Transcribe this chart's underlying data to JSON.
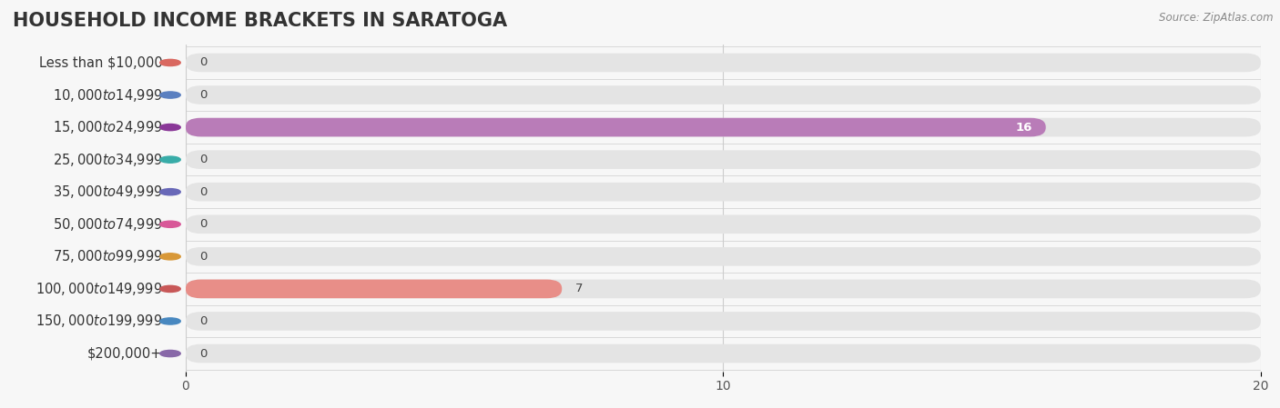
{
  "title": "HOUSEHOLD INCOME BRACKETS IN SARATOGA",
  "source": "Source: ZipAtlas.com",
  "categories": [
    "Less than $10,000",
    "$10,000 to $14,999",
    "$15,000 to $24,999",
    "$25,000 to $34,999",
    "$35,000 to $49,999",
    "$50,000 to $74,999",
    "$75,000 to $99,999",
    "$100,000 to $149,999",
    "$150,000 to $199,999",
    "$200,000+"
  ],
  "values": [
    0,
    0,
    16,
    0,
    0,
    0,
    0,
    7,
    0,
    0
  ],
  "bar_colors": [
    "#f2a59d",
    "#a0bde0",
    "#b97cb8",
    "#72ccc6",
    "#abaad8",
    "#f09db5",
    "#f5cc82",
    "#e88e88",
    "#8ab4de",
    "#c4b4d4"
  ],
  "dot_colors": [
    "#d96860",
    "#5a7fc0",
    "#8a3898",
    "#38aca8",
    "#6868b8",
    "#d85898",
    "#d89838",
    "#c85858",
    "#4888c0",
    "#8868a8"
  ],
  "xlim": [
    0,
    20
  ],
  "xticks": [
    0,
    10,
    20
  ],
  "bg_color": "#f7f7f7",
  "bar_bg_color": "#e4e4e4",
  "title_fontsize": 15,
  "label_fontsize": 10.5,
  "value_fontsize": 9.5
}
